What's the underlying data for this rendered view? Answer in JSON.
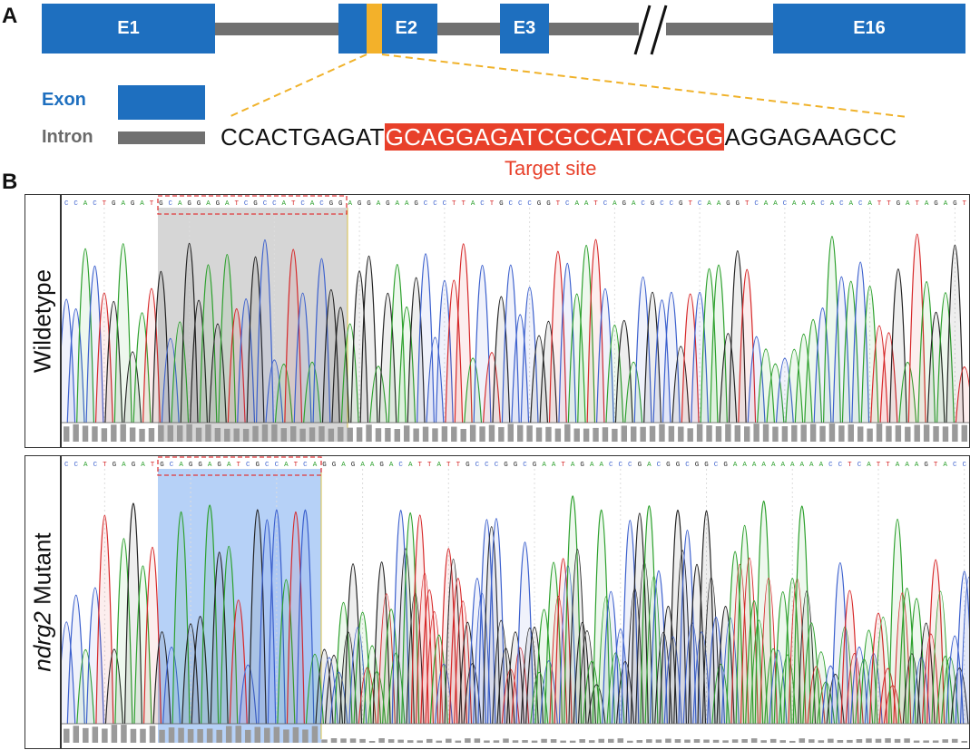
{
  "panel_a": {
    "letter": "A",
    "exons": [
      "E1",
      "E2",
      "E3",
      "E16"
    ],
    "legend": {
      "exon_label": "Exon",
      "intron_label": "Intron",
      "exon_color": "#1e6fbf",
      "intron_color": "#707070"
    },
    "target_color": "#f3b12a",
    "sequence": {
      "left_flank": "CCACTGAGAT",
      "target": "GCAGGAGATCGCCATCACGG",
      "right_flank": "AGGAGAAGCC"
    },
    "target_caption": "Target site",
    "target_caption_color": "#e8402a"
  },
  "panel_b": {
    "letter": "B",
    "wildtype": {
      "label": "Wildetype",
      "sequence": "CCACTGAGATGCAGGAGATCGCCATCACGGAGGAGAAGCCCTTACTGCCCGGTCAATCAGACGCCGTCAAGGTCAACAAACACACATTGATAGAGT",
      "highlight_color": "#c8c8c8"
    },
    "mutant": {
      "label_italic": "ndrg2",
      "label_rest": " Mutant",
      "sequence": "CCACTGAGATGCAGGAGATCGCCATCAGGAGAAGACATTATTGCCCGGCGAATAGAACCCGACGGCGGCGAAAAAAAAAACCTCATTAAAGTACC",
      "highlight_color": "#8fb9f2"
    },
    "base_colors": {
      "A": "#2ca02c",
      "C": "#3a5fcd",
      "G": "#222222",
      "T": "#d62728"
    }
  }
}
